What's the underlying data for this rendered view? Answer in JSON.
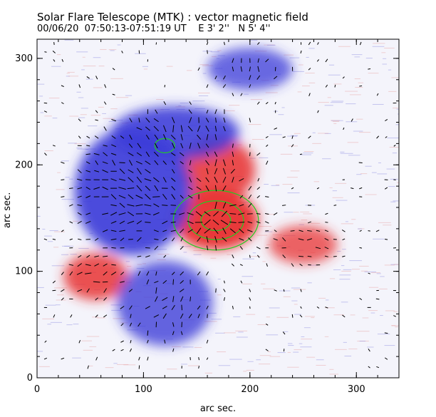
{
  "title": "Solar Flare Telescope (MTK) : vector magnetic field",
  "subtitle": "00/06/20  07:50:13-07:51:19 UT    E 3' 2''   N 5' 4''",
  "xlabel": "arc sec.",
  "ylabel": "arc sec.",
  "axes": {
    "xlim": [
      0,
      340
    ],
    "ylim": [
      0,
      318
    ],
    "x_ticks": [
      0,
      100,
      200,
      300
    ],
    "y_ticks": [
      0,
      100,
      200,
      300
    ]
  },
  "colors": {
    "positive": "#e83030",
    "negative": "#3a3ad8",
    "contour": "#22cc22",
    "arrow": "#000000"
  },
  "regions": [
    {
      "name": "main-positive-spot",
      "polarity": "positive",
      "cx": 168,
      "cy": 148,
      "rx": 40,
      "ry": 28,
      "strength": 1.0
    },
    {
      "name": "positive-plage-north",
      "polarity": "positive",
      "cx": 170,
      "cy": 195,
      "rx": 35,
      "ry": 30,
      "strength": 0.8
    },
    {
      "name": "positive-plage-west",
      "polarity": "positive",
      "cx": 55,
      "cy": 95,
      "rx": 30,
      "ry": 22,
      "strength": 0.7
    },
    {
      "name": "positive-plage-east",
      "polarity": "positive",
      "cx": 250,
      "cy": 125,
      "rx": 32,
      "ry": 18,
      "strength": 0.5
    },
    {
      "name": "negative-main",
      "polarity": "negative",
      "cx": 90,
      "cy": 175,
      "rx": 55,
      "ry": 60,
      "strength": 0.9
    },
    {
      "name": "negative-north",
      "polarity": "negative",
      "cx": 130,
      "cy": 230,
      "rx": 60,
      "ry": 25,
      "strength": 0.8
    },
    {
      "name": "negative-south",
      "polarity": "negative",
      "cx": 120,
      "cy": 70,
      "rx": 45,
      "ry": 40,
      "strength": 0.6
    },
    {
      "name": "negative-top",
      "polarity": "negative",
      "cx": 200,
      "cy": 290,
      "rx": 40,
      "ry": 20,
      "strength": 0.5
    }
  ]
}
